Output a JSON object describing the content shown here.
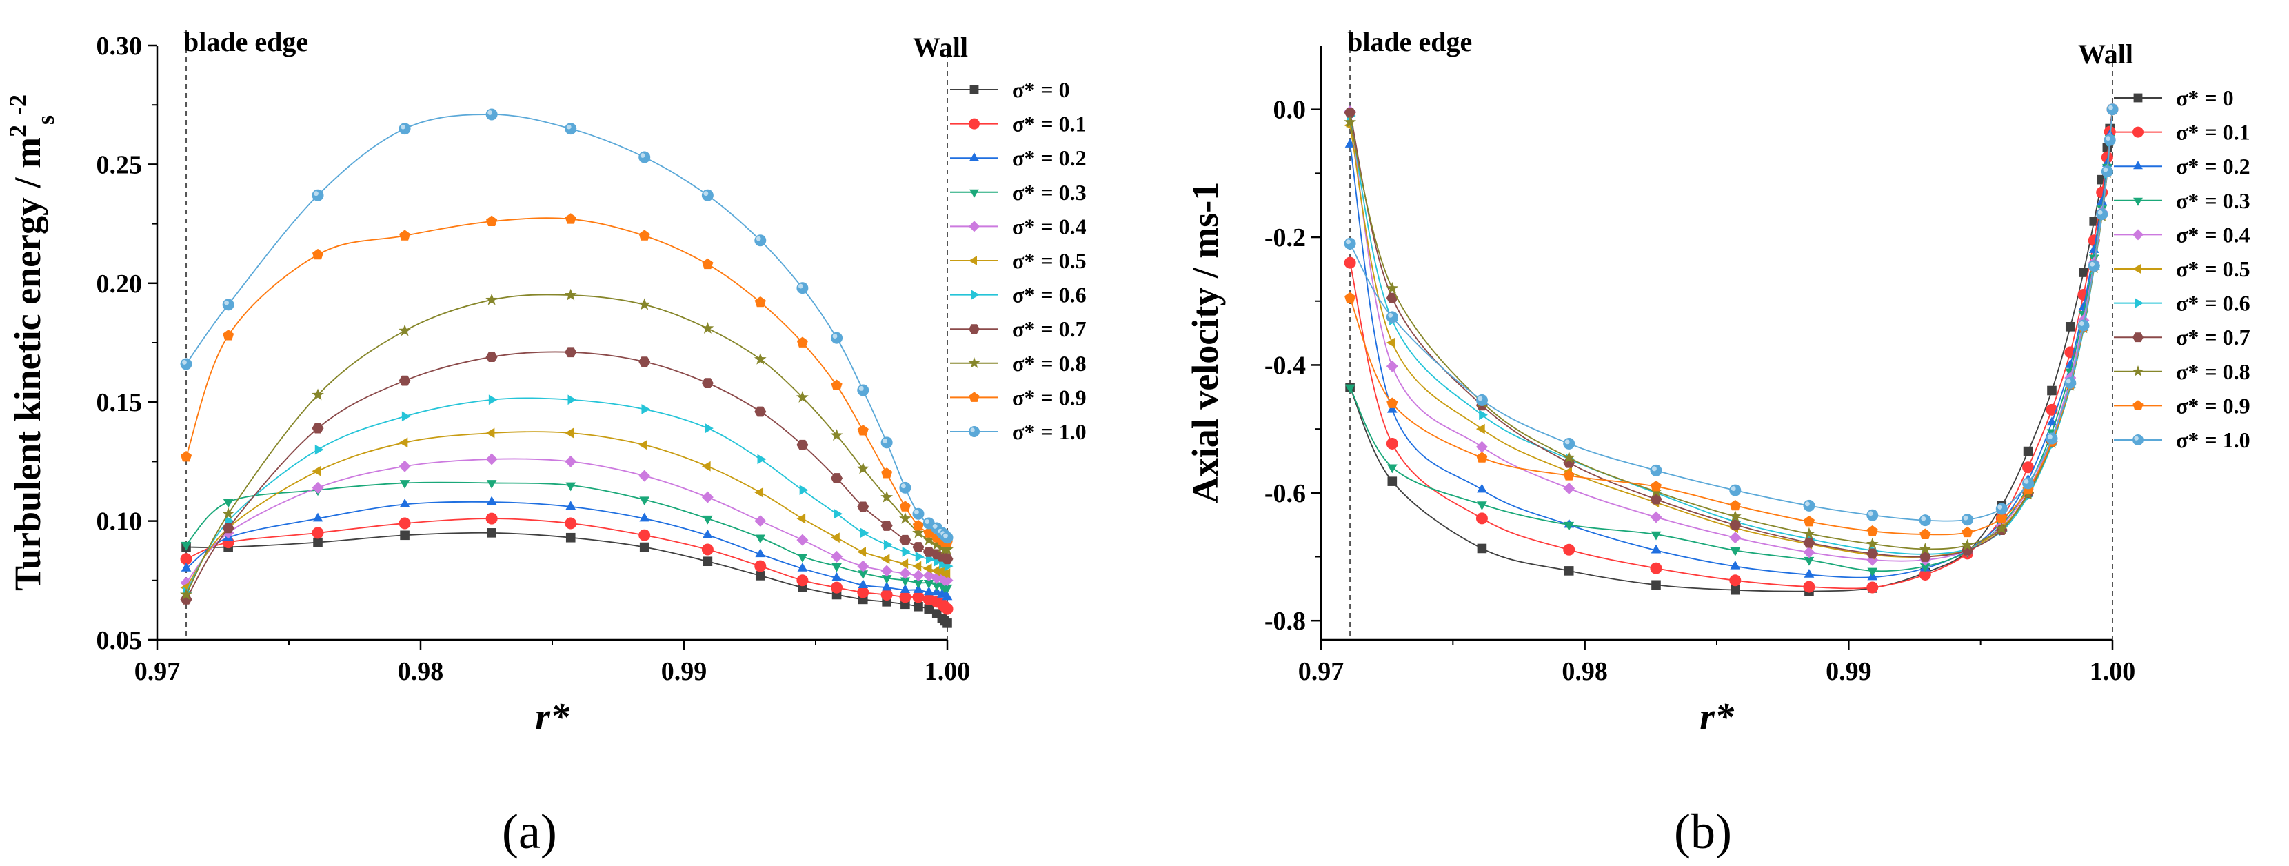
{
  "panel_labels": [
    "(a)",
    "(b)"
  ],
  "colors": {
    "0": "#404040",
    "0.1": "#ff3b3b",
    "0.2": "#1f6fe0",
    "0.3": "#1aa879",
    "0.4": "#cc7adf",
    "0.5": "#c89c12",
    "0.6": "#25c4d8",
    "0.7": "#8b4a4a",
    "0.8": "#86862a",
    "0.9": "#ff7a10",
    "1.0": "#5aa8d8"
  },
  "markers": {
    "0": "square",
    "0.1": "circle",
    "0.2": "triangle-up",
    "0.3": "triangle-down",
    "0.4": "diamond",
    "0.5": "triangle-left",
    "0.6": "triangle-right",
    "0.7": "hexagon",
    "0.8": "star",
    "0.9": "pentagon",
    "1.0": "sphere"
  },
  "chart_data": [
    {
      "type": "line",
      "title": "",
      "xlabel": "r*",
      "ylabel": "Turbulent kinetic energy / m2s-2",
      "ylabel_parts": [
        "Turbulent kinetic energy / m",
        "2",
        "s",
        "-2"
      ],
      "xlim": [
        0.97,
        1.0
      ],
      "ylim": [
        0.05,
        0.3
      ],
      "xticks": [
        "0.97",
        "0.98",
        "0.99",
        "1.00"
      ],
      "yticks": [
        "0.05",
        "0.10",
        "0.15",
        "0.20",
        "0.25",
        "0.30"
      ],
      "annotations": {
        "blade_edge": "blade edge",
        "wall": "Wall",
        "blade_edge_x": 0.9711,
        "wall_x": 1.0
      },
      "legend_position": "top-right",
      "x": [
        0.9711,
        0.9727,
        0.9761,
        0.9794,
        0.9827,
        0.9857,
        0.9885,
        0.9909,
        0.9929,
        0.9945,
        0.9958,
        0.9968,
        0.9977,
        0.9984,
        0.9989,
        0.9993,
        0.9996,
        0.9998,
        0.9999,
        1.0
      ],
      "series": [
        {
          "name": "σ* = 0",
          "key": "0",
          "values": [
            0.089,
            0.089,
            0.091,
            0.094,
            0.095,
            0.093,
            0.089,
            0.083,
            0.077,
            0.072,
            0.069,
            0.067,
            0.066,
            0.065,
            0.064,
            0.063,
            0.061,
            0.059,
            0.058,
            0.057
          ]
        },
        {
          "name": "σ* = 0.1",
          "key": "0.1",
          "values": [
            0.084,
            0.091,
            0.095,
            0.099,
            0.101,
            0.099,
            0.094,
            0.088,
            0.081,
            0.075,
            0.072,
            0.07,
            0.069,
            0.068,
            0.068,
            0.067,
            0.066,
            0.065,
            0.064,
            0.063
          ]
        },
        {
          "name": "σ* = 0.2",
          "key": "0.2",
          "values": [
            0.08,
            0.093,
            0.101,
            0.107,
            0.108,
            0.106,
            0.101,
            0.094,
            0.086,
            0.08,
            0.076,
            0.073,
            0.072,
            0.071,
            0.071,
            0.07,
            0.07,
            0.069,
            0.069,
            0.068
          ]
        },
        {
          "name": "σ* = 0.3",
          "key": "0.3",
          "values": [
            0.09,
            0.108,
            0.113,
            0.116,
            0.116,
            0.115,
            0.109,
            0.101,
            0.093,
            0.085,
            0.081,
            0.078,
            0.076,
            0.075,
            0.074,
            0.074,
            0.073,
            0.073,
            0.072,
            0.072
          ]
        },
        {
          "name": "σ* = 0.4",
          "key": "0.4",
          "values": [
            0.074,
            0.095,
            0.114,
            0.123,
            0.126,
            0.125,
            0.119,
            0.11,
            0.1,
            0.092,
            0.085,
            0.081,
            0.079,
            0.078,
            0.077,
            0.077,
            0.076,
            0.076,
            0.075,
            0.075
          ]
        },
        {
          "name": "σ* = 0.5",
          "key": "0.5",
          "values": [
            0.072,
            0.097,
            0.121,
            0.133,
            0.137,
            0.137,
            0.132,
            0.123,
            0.112,
            0.101,
            0.093,
            0.087,
            0.084,
            0.082,
            0.081,
            0.08,
            0.079,
            0.079,
            0.078,
            0.078
          ]
        },
        {
          "name": "σ* = 0.6",
          "key": "0.6",
          "values": [
            0.07,
            0.1,
            0.13,
            0.144,
            0.151,
            0.151,
            0.147,
            0.139,
            0.126,
            0.113,
            0.103,
            0.095,
            0.09,
            0.087,
            0.085,
            0.084,
            0.083,
            0.082,
            0.082,
            0.081
          ]
        },
        {
          "name": "σ* = 0.7",
          "key": "0.7",
          "values": [
            0.067,
            0.097,
            0.139,
            0.159,
            0.169,
            0.171,
            0.167,
            0.158,
            0.146,
            0.132,
            0.118,
            0.106,
            0.098,
            0.092,
            0.089,
            0.087,
            0.086,
            0.085,
            0.085,
            0.084
          ]
        },
        {
          "name": "σ* = 0.8",
          "key": "0.8",
          "values": [
            0.069,
            0.103,
            0.153,
            0.18,
            0.193,
            0.195,
            0.191,
            0.181,
            0.168,
            0.152,
            0.136,
            0.122,
            0.11,
            0.101,
            0.095,
            0.092,
            0.09,
            0.089,
            0.088,
            0.088
          ]
        },
        {
          "name": "σ* = 0.9",
          "key": "0.9",
          "values": [
            0.127,
            0.178,
            0.212,
            0.22,
            0.226,
            0.227,
            0.22,
            0.208,
            0.192,
            0.175,
            0.157,
            0.138,
            0.12,
            0.106,
            0.098,
            0.095,
            0.093,
            0.092,
            0.091,
            0.091
          ]
        },
        {
          "name": "σ* = 1.0",
          "key": "1.0",
          "values": [
            0.166,
            0.191,
            0.237,
            0.265,
            0.271,
            0.265,
            0.253,
            0.237,
            0.218,
            0.198,
            0.177,
            0.155,
            0.133,
            0.114,
            0.103,
            0.099,
            0.097,
            0.095,
            0.094,
            0.093
          ]
        }
      ]
    },
    {
      "type": "line",
      "title": "",
      "xlabel": "r*",
      "ylabel": "Axial velocity / ms-1",
      "xlim": [
        0.97,
        1.0
      ],
      "ylim": [
        -0.83,
        0.1
      ],
      "xticks": [
        "0.97",
        "0.98",
        "0.99",
        "1.00"
      ],
      "yticks": [
        "-0.8",
        "-0.6",
        "-0.4",
        "-0.2",
        "0.0"
      ],
      "annotations": {
        "blade_edge": "blade edge",
        "wall": "Wall",
        "blade_edge_x": 0.9711,
        "wall_x": 1.0
      },
      "legend_position": "top-right",
      "x": [
        0.9711,
        0.9727,
        0.9761,
        0.9794,
        0.9827,
        0.9857,
        0.9885,
        0.9909,
        0.9929,
        0.9945,
        0.9958,
        0.9968,
        0.9977,
        0.9984,
        0.9989,
        0.9993,
        0.9996,
        0.9998,
        0.9999,
        1.0
      ],
      "series": [
        {
          "name": "σ* = 0",
          "key": "0",
          "values": [
            -0.435,
            -0.582,
            -0.687,
            -0.722,
            -0.744,
            -0.752,
            -0.754,
            -0.749,
            -0.725,
            -0.692,
            -0.62,
            -0.535,
            -0.44,
            -0.34,
            -0.255,
            -0.175,
            -0.11,
            -0.06,
            -0.03,
            0.0
          ]
        },
        {
          "name": "σ* = 0.1",
          "key": "0.1",
          "values": [
            -0.24,
            -0.523,
            -0.64,
            -0.689,
            -0.718,
            -0.737,
            -0.747,
            -0.748,
            -0.728,
            -0.695,
            -0.64,
            -0.56,
            -0.47,
            -0.38,
            -0.29,
            -0.205,
            -0.13,
            -0.075,
            -0.035,
            0.0
          ]
        },
        {
          "name": "σ* = 0.2",
          "key": "0.2",
          "values": [
            -0.055,
            -0.47,
            -0.595,
            -0.65,
            -0.69,
            -0.715,
            -0.728,
            -0.732,
            -0.718,
            -0.69,
            -0.645,
            -0.58,
            -0.49,
            -0.4,
            -0.31,
            -0.22,
            -0.145,
            -0.085,
            -0.04,
            0.0
          ]
        },
        {
          "name": "σ* = 0.3",
          "key": "0.3",
          "values": [
            -0.435,
            -0.56,
            -0.618,
            -0.65,
            -0.665,
            -0.69,
            -0.705,
            -0.722,
            -0.715,
            -0.692,
            -0.65,
            -0.59,
            -0.505,
            -0.41,
            -0.32,
            -0.232,
            -0.155,
            -0.09,
            -0.045,
            0.0
          ]
        },
        {
          "name": "σ* = 0.4",
          "key": "0.4",
          "values": [
            -0.003,
            -0.402,
            -0.528,
            -0.593,
            -0.638,
            -0.67,
            -0.693,
            -0.705,
            -0.705,
            -0.69,
            -0.652,
            -0.595,
            -0.515,
            -0.42,
            -0.33,
            -0.24,
            -0.16,
            -0.095,
            -0.045,
            0.0
          ]
        },
        {
          "name": "σ* = 0.5",
          "key": "0.5",
          "values": [
            -0.025,
            -0.365,
            -0.5,
            -0.567,
            -0.615,
            -0.655,
            -0.68,
            -0.697,
            -0.7,
            -0.688,
            -0.655,
            -0.6,
            -0.52,
            -0.43,
            -0.34,
            -0.245,
            -0.165,
            -0.098,
            -0.048,
            0.0
          ]
        },
        {
          "name": "σ* = 0.6",
          "key": "0.6",
          "values": [
            -0.01,
            -0.33,
            -0.478,
            -0.547,
            -0.6,
            -0.645,
            -0.672,
            -0.69,
            -0.696,
            -0.688,
            -0.66,
            -0.605,
            -0.525,
            -0.435,
            -0.345,
            -0.25,
            -0.168,
            -0.1,
            -0.05,
            0.0
          ]
        },
        {
          "name": "σ* = 0.7",
          "key": "0.7",
          "values": [
            -0.005,
            -0.295,
            -0.463,
            -0.553,
            -0.61,
            -0.65,
            -0.678,
            -0.695,
            -0.7,
            -0.69,
            -0.658,
            -0.6,
            -0.52,
            -0.43,
            -0.34,
            -0.245,
            -0.165,
            -0.098,
            -0.048,
            0.0
          ]
        },
        {
          "name": "σ* = 0.8",
          "key": "0.8",
          "values": [
            -0.02,
            -0.28,
            -0.458,
            -0.545,
            -0.598,
            -0.637,
            -0.664,
            -0.68,
            -0.688,
            -0.682,
            -0.656,
            -0.602,
            -0.522,
            -0.432,
            -0.342,
            -0.248,
            -0.167,
            -0.099,
            -0.049,
            0.0
          ]
        },
        {
          "name": "σ* = 0.9",
          "key": "0.9",
          "values": [
            -0.295,
            -0.46,
            -0.545,
            -0.573,
            -0.59,
            -0.62,
            -0.645,
            -0.66,
            -0.665,
            -0.662,
            -0.64,
            -0.595,
            -0.52,
            -0.43,
            -0.34,
            -0.246,
            -0.165,
            -0.098,
            -0.048,
            0.0
          ]
        },
        {
          "name": "σ* = 1.0",
          "key": "1.0",
          "values": [
            -0.21,
            -0.325,
            -0.455,
            -0.523,
            -0.565,
            -0.596,
            -0.62,
            -0.635,
            -0.643,
            -0.642,
            -0.625,
            -0.585,
            -0.515,
            -0.428,
            -0.338,
            -0.245,
            -0.164,
            -0.097,
            -0.048,
            0.0
          ]
        }
      ]
    }
  ]
}
